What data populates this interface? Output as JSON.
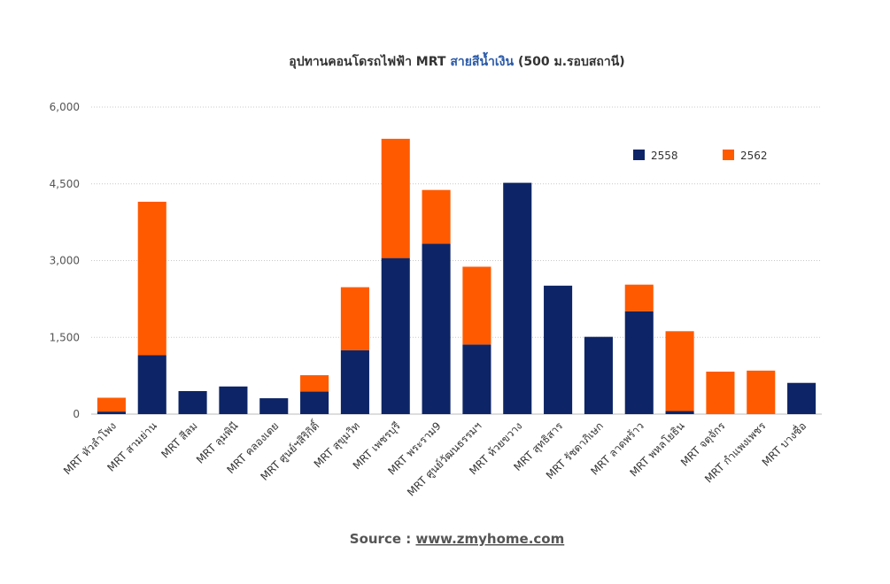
{
  "chart_data": {
    "type": "bar",
    "stacked": true,
    "title": "อุปทานคอนโดรถไฟฟ้า MRT สายสีน้ำเงิน (500 ม.รอบสถานี)",
    "title_parts": {
      "prefix": "อุปทานคอนโดรถไฟฟ้า MRT ",
      "accent": "สายสีน้ำเงิน",
      "suffix": " (500 ม.รอบสถานี)"
    },
    "xlabel": "",
    "ylabel": "",
    "ylim": [
      0,
      6000
    ],
    "yticks": [
      0,
      1500,
      3000,
      4500,
      6000
    ],
    "ytick_labels": [
      "0",
      "1,500",
      "3,000",
      "4,500",
      "6,000"
    ],
    "grid": true,
    "legend_position": "top-right",
    "categories": [
      "MRT หัวลำโพง",
      "MRT สามย่าน",
      "MRT สีลม",
      "MRT ลุมพินี",
      "MRT คลองเตย",
      "MRT ศูนย์ฯสิริกิติ์",
      "MRT สุขุมวิท",
      "MRT เพชรบุรี",
      "MRT พระราม9",
      "MRT ศูนย์วัฒนธรรมฯ",
      "MRT ห้วยขวาง",
      "MRT สุทธิสาร",
      "MRT รัชดาภิเษก",
      "MRT ลาดพร้าว",
      "MRT พหลโยธิน",
      "MRT จตุจักร",
      "MRT กำแพงเพชร",
      "MRT บางซื่อ"
    ],
    "series": [
      {
        "name": "2558",
        "color": "#0d2566",
        "values": [
          50,
          1150,
          450,
          540,
          310,
          440,
          1250,
          3050,
          3330,
          1360,
          4520,
          2510,
          1510,
          2010,
          60,
          0,
          0,
          610
        ]
      },
      {
        "name": "2562",
        "color": "#ff5a00",
        "values": [
          270,
          3000,
          0,
          0,
          0,
          320,
          1230,
          2330,
          1050,
          1520,
          0,
          0,
          0,
          520,
          1560,
          830,
          850,
          0
        ]
      }
    ]
  },
  "footer": {
    "source_label": "Source : ",
    "source_url": "www.zmyhome.com"
  }
}
